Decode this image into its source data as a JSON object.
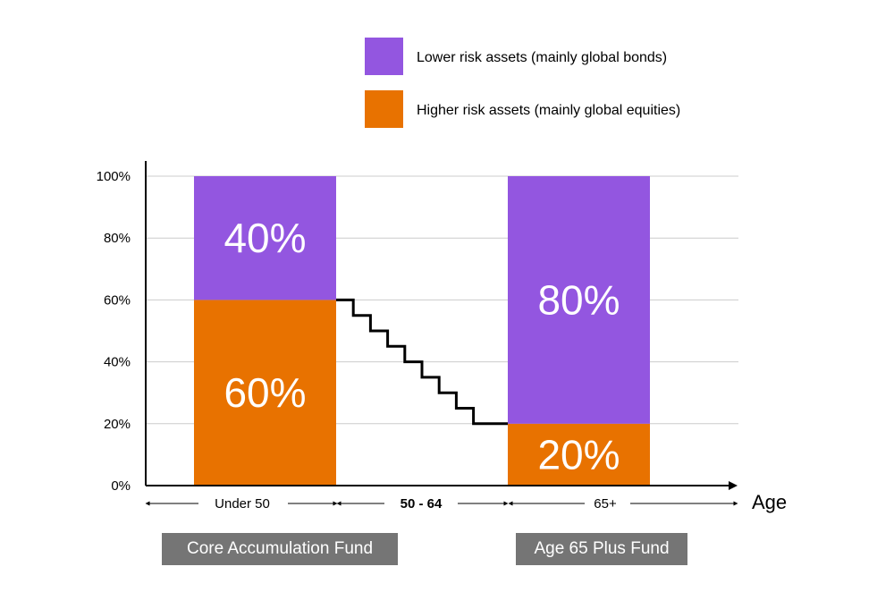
{
  "chart_data": {
    "type": "bar",
    "stacked": true,
    "categories": [
      "Core Accumulation Fund",
      "Age 65 Plus Fund"
    ],
    "series": [
      {
        "name": "Higher risk assets (mainly global equities)",
        "color": "#e87200",
        "values": [
          60,
          20
        ]
      },
      {
        "name": "Lower risk assets (mainly global bonds)",
        "color": "#9356e0",
        "values": [
          40,
          80
        ]
      }
    ],
    "bar_labels": [
      [
        "60%",
        "40%"
      ],
      [
        "20%",
        "80%"
      ]
    ],
    "ylim": [
      0,
      100
    ],
    "yticks": [
      "0%",
      "20%",
      "40%",
      "60%",
      "80%",
      "100%"
    ],
    "grid": true,
    "legend": "top-right",
    "glide_path": {
      "from": 60,
      "to": 20,
      "steps": 10
    },
    "age_ranges": [
      "Under 50",
      "50 - 64",
      "65+"
    ],
    "xlabel": "Age",
    "funds": [
      "Core Accumulation Fund",
      "Age 65 Plus Fund"
    ]
  }
}
